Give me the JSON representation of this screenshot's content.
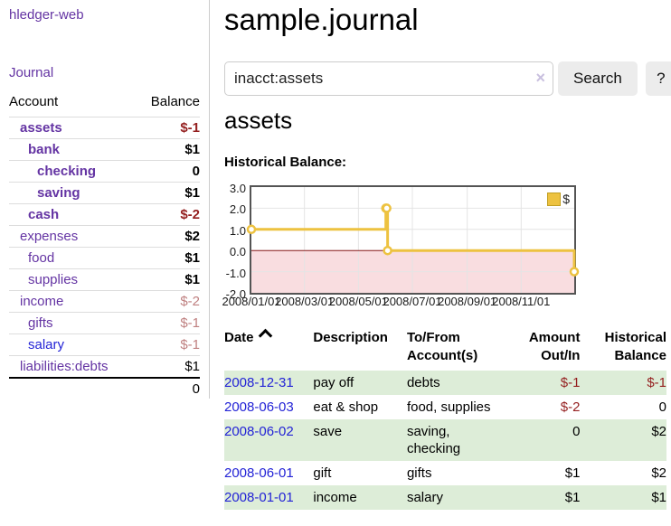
{
  "sidebar": {
    "brand": "hledger-web",
    "nav": {
      "journal": "Journal"
    },
    "table": {
      "account_header": "Account",
      "balance_header": "Balance"
    },
    "accounts": [
      {
        "name": "assets",
        "balance": "$-1"
      },
      {
        "name": "bank",
        "balance": "$1"
      },
      {
        "name": "checking",
        "balance": "0"
      },
      {
        "name": "saving",
        "balance": "$1"
      },
      {
        "name": "cash",
        "balance": "$-2"
      },
      {
        "name": "expenses",
        "balance": "$2"
      },
      {
        "name": "food",
        "balance": "$1"
      },
      {
        "name": "supplies",
        "balance": "$1"
      },
      {
        "name": "income",
        "balance": "$-2"
      },
      {
        "name": "gifts",
        "balance": "$-1"
      },
      {
        "name": "salary",
        "balance": "$-1"
      },
      {
        "name": "liabilities:debts",
        "balance": "$1"
      }
    ],
    "total": "0"
  },
  "main": {
    "title": "sample.journal",
    "search": {
      "value": "inacct:assets",
      "clear": "×",
      "button": "Search",
      "help": "?"
    },
    "account_title": "assets",
    "chart_label": "Historical Balance:"
  },
  "chart_data": {
    "type": "line",
    "step": true,
    "title": "Historical Balance",
    "series": [
      {
        "name": "$",
        "color": "#edc240",
        "points": [
          [
            "2008-01-01",
            1
          ],
          [
            "2008-06-01",
            2
          ],
          [
            "2008-06-02",
            2
          ],
          [
            "2008-06-03",
            0
          ],
          [
            "2008-12-31",
            -1
          ]
        ]
      }
    ],
    "x_range": [
      "2008-01-01",
      "2008-12-31"
    ],
    "x_ticks": [
      {
        "date": "2008-01-01",
        "label": "2008/01/01"
      },
      {
        "date": "2008-03-01",
        "label": "2008/03/01"
      },
      {
        "date": "2008-05-01",
        "label": "2008/05/01"
      },
      {
        "date": "2008-07-01",
        "label": "2008/07/01"
      },
      {
        "date": "2008-09-01",
        "label": "2008/09/01"
      },
      {
        "date": "2008-11-01",
        "label": "2008/11/01"
      }
    ],
    "y_ticks": [
      {
        "value": 3,
        "label": "3.0"
      },
      {
        "value": 2,
        "label": "2.0"
      },
      {
        "value": 1,
        "label": "1.0"
      },
      {
        "value": 0,
        "label": "0.0"
      },
      {
        "value": -1,
        "label": "-1.0"
      },
      {
        "value": -2,
        "label": "-2.0"
      }
    ],
    "ylim": [
      -2,
      3
    ],
    "grid": true,
    "legend_position": "top-right",
    "grid_color": "#e4e4e4",
    "zero_line_color": "#8b1a1a",
    "negative_region_color": "#f9dde0"
  },
  "register": {
    "headers": {
      "date": "Date",
      "description": "Description",
      "accounts": "To/From Account(s)",
      "amount": "Amount Out/In",
      "balance": "Historical Balance"
    },
    "rows": [
      {
        "date": "2008-12-31",
        "description": "pay off",
        "accounts": "debts",
        "amount": "$-1",
        "balance": "$-1"
      },
      {
        "date": "2008-06-03",
        "description": "eat & shop",
        "accounts": "food, supplies",
        "amount": "$-2",
        "balance": "0"
      },
      {
        "date": "2008-06-02",
        "description": "save",
        "accounts": "saving, checking",
        "amount": "0",
        "balance": "$2"
      },
      {
        "date": "2008-06-01",
        "description": "gift",
        "accounts": "gifts",
        "amount": "$1",
        "balance": "$2"
      },
      {
        "date": "2008-01-01",
        "description": "income",
        "accounts": "salary",
        "amount": "$1",
        "balance": "$1"
      }
    ]
  }
}
